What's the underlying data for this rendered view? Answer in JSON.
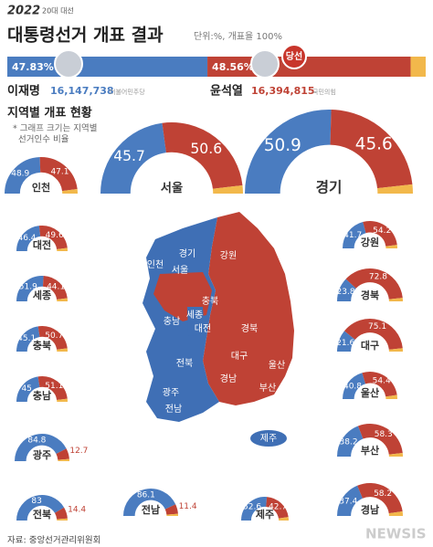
{
  "header": {
    "logo": "2022",
    "logo_sub": "20대 대선",
    "title": "대통령선거 개표 결과",
    "unit": "단위:%, 개표율 100%"
  },
  "national": {
    "candidates": [
      {
        "name": "이재명",
        "pct": 47.83,
        "pct_label": "47.83%",
        "votes": "16,147,738",
        "party": "더불어민주당",
        "color": "#4a7cc0"
      },
      {
        "name": "윤석열",
        "pct": 48.56,
        "pct_label": "48.56%",
        "votes": "16,394,815",
        "party": "국민의힘",
        "color": "#bf4235"
      }
    ],
    "others_color": "#f2b84b",
    "winner_badge": "당선"
  },
  "section": {
    "title": "지역별 개표 현황",
    "note": [
      "* 그래프 크기는 지역별",
      "선거인수 비율"
    ]
  },
  "regions": [
    {
      "name": "인천",
      "lee": 48.9,
      "yoon": 47.1
    },
    {
      "name": "서울",
      "lee": 45.7,
      "yoon": 50.6
    },
    {
      "name": "경기",
      "lee": 50.9,
      "yoon": 45.6
    },
    {
      "name": "대전",
      "lee": 46.4,
      "yoon": 49.6
    },
    {
      "name": "세종",
      "lee": 51.9,
      "yoon": 44.1
    },
    {
      "name": "충북",
      "lee": 45.1,
      "yoon": 50.7
    },
    {
      "name": "충남",
      "lee": 45.0,
      "yoon": 51.1
    },
    {
      "name": "광주",
      "lee": 84.8,
      "yoon": 12.7
    },
    {
      "name": "전북",
      "lee": 83.0,
      "yoon": 14.4
    },
    {
      "name": "전남",
      "lee": 86.1,
      "yoon": 11.4
    },
    {
      "name": "제주",
      "lee": 52.6,
      "yoon": 42.7
    },
    {
      "name": "강원",
      "lee": 41.7,
      "yoon": 54.2
    },
    {
      "name": "경북",
      "lee": 23.8,
      "yoon": 72.8
    },
    {
      "name": "대구",
      "lee": 21.6,
      "yoon": 75.1
    },
    {
      "name": "울산",
      "lee": 40.8,
      "yoon": 54.4
    },
    {
      "name": "부산",
      "lee": 38.2,
      "yoon": 58.3
    },
    {
      "name": "경남",
      "lee": 37.4,
      "yoon": 58.2
    }
  ],
  "map_labels": [
    "경기",
    "인천",
    "서울",
    "강원",
    "충북",
    "충남",
    "세종",
    "대전",
    "경북",
    "전북",
    "대구",
    "울산",
    "경남",
    "부산",
    "광주",
    "전남",
    "제주"
  ],
  "source": "자료: 중앙선거관리위원회",
  "watermark": "NEWSIS"
}
